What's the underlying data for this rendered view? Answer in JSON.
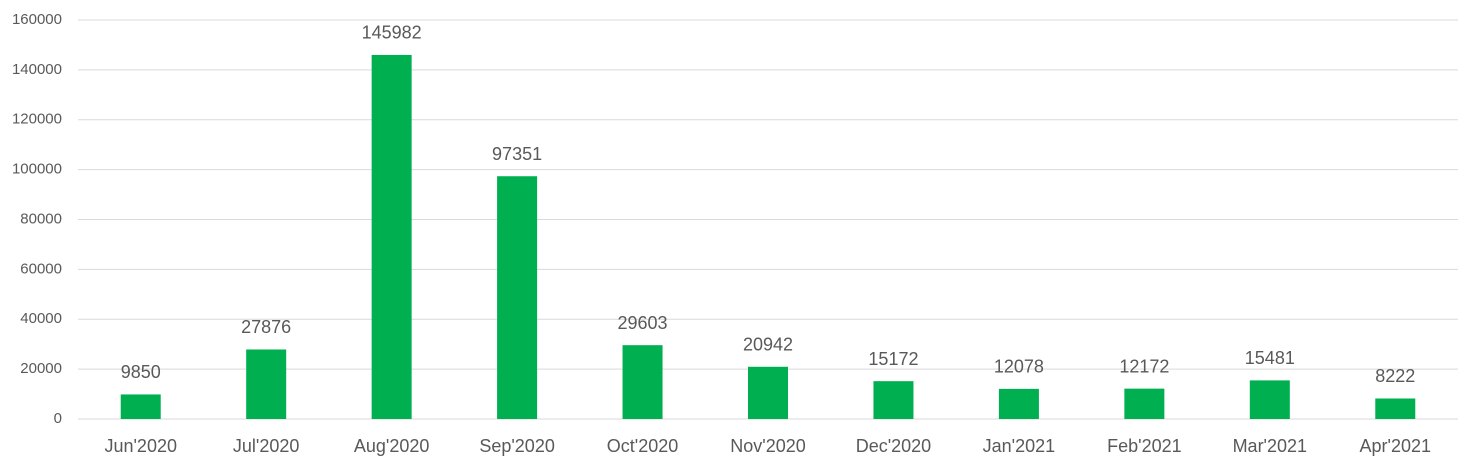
{
  "chart_data": {
    "type": "bar",
    "categories": [
      "Jun'2020",
      "Jul'2020",
      "Aug'2020",
      "Sep'2020",
      "Oct'2020",
      "Nov'2020",
      "Dec'2020",
      "Jan'2021",
      "Feb'2021",
      "Mar'2021",
      "Apr'2021"
    ],
    "values": [
      9850,
      27876,
      145982,
      97351,
      29603,
      20942,
      15172,
      12078,
      12172,
      15481,
      8222
    ],
    "color": "#00b050",
    "ylim": [
      0,
      160000
    ],
    "yticks": [
      0,
      20000,
      40000,
      60000,
      80000,
      100000,
      120000,
      140000,
      160000
    ],
    "grid": true
  }
}
